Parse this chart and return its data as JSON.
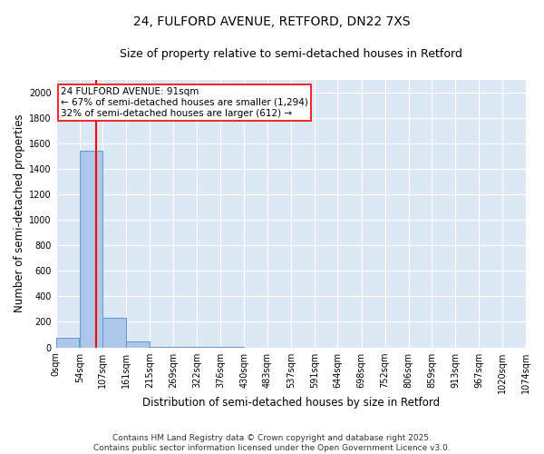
{
  "title_line1": "24, FULFORD AVENUE, RETFORD, DN22 7XS",
  "title_line2": "Size of property relative to semi-detached houses in Retford",
  "xlabel": "Distribution of semi-detached houses by size in Retford",
  "ylabel": "Number of semi-detached properties",
  "annotation_line1": "24 FULFORD AVENUE: 91sqm",
  "annotation_line2": "← 67% of semi-detached houses are smaller (1,294)",
  "annotation_line3": "32% of semi-detached houses are larger (612) →",
  "property_size_sqm": 91,
  "bin_edges": [
    0,
    54,
    107,
    161,
    215,
    269,
    322,
    376,
    430,
    483,
    537,
    591,
    644,
    698,
    752,
    806,
    859,
    913,
    967,
    1020,
    1074
  ],
  "bin_labels": [
    "0sqm",
    "54sqm",
    "107sqm",
    "161sqm",
    "215sqm",
    "269sqm",
    "322sqm",
    "376sqm",
    "430sqm",
    "483sqm",
    "537sqm",
    "591sqm",
    "644sqm",
    "698sqm",
    "752sqm",
    "806sqm",
    "859sqm",
    "913sqm",
    "967sqm",
    "1020sqm",
    "1074sqm"
  ],
  "bar_heights": [
    75,
    1540,
    230,
    50,
    6,
    2,
    1,
    1,
    0,
    0,
    0,
    0,
    0,
    0,
    0,
    0,
    0,
    0,
    0,
    0
  ],
  "bar_color": "#aec6e8",
  "bar_edge_color": "#5b9bd5",
  "marker_color": "red",
  "ylim": [
    0,
    2100
  ],
  "yticks": [
    0,
    200,
    400,
    600,
    800,
    1000,
    1200,
    1400,
    1600,
    1800,
    2000
  ],
  "background_color": "#dde8f5",
  "grid_color": "white",
  "annotation_box_color": "white",
  "annotation_box_edge": "red",
  "footer_line1": "Contains HM Land Registry data © Crown copyright and database right 2025.",
  "footer_line2": "Contains public sector information licensed under the Open Government Licence v3.0.",
  "title_fontsize": 10,
  "subtitle_fontsize": 9,
  "axis_label_fontsize": 8.5,
  "tick_fontsize": 7,
  "annotation_fontsize": 7.5,
  "footer_fontsize": 6.5
}
